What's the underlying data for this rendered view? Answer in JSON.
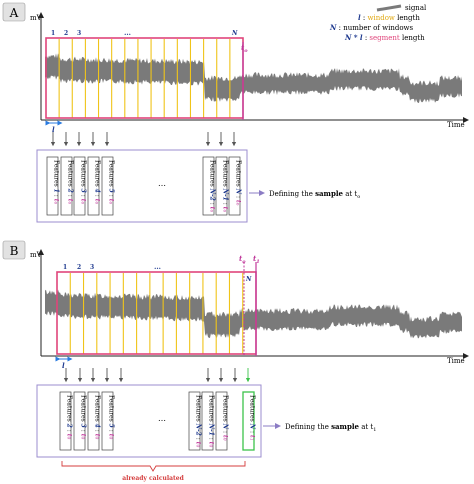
{
  "colors": {
    "signal": "#7a7a7a",
    "window_line": "#f0c419",
    "segment_rect": "#e0457b",
    "time_marker": "#c0399b",
    "index_blue": "#1f3a8f",
    "feature_box_border": "#9b8ccf",
    "green_highlight": "#3cc24a",
    "brace_red": "#d43c3c"
  },
  "legend": {
    "signal": "signal",
    "l_label": "l",
    "l_text_pre": " : ",
    "l_window": "window",
    "l_text_post": " length",
    "n_label": "N",
    "n_text": " : number of windows",
    "nl_label": "N * l",
    "nl_text_pre": " : ",
    "nl_segment": "segment",
    "nl_text_post": " length"
  },
  "panel_a": {
    "letter": "A",
    "y_axis": "mV",
    "x_axis": "Time",
    "time_marker": "t",
    "time_marker_sub": "o",
    "window_indices": [
      "1",
      "2",
      "3",
      "…",
      "N"
    ],
    "window_l": "l",
    "features": [
      {
        "label": "Features",
        "index": "1",
        "t": "t",
        "sub": "o"
      },
      {
        "label": "Features",
        "index": "2",
        "t": "t",
        "sub": "o"
      },
      {
        "label": "Features",
        "index": "3",
        "t": "t",
        "sub": "o"
      },
      {
        "label": "Features",
        "index": "4",
        "t": "t",
        "sub": "o"
      },
      {
        "label": "Features",
        "index": "5",
        "t": "t",
        "sub": "o"
      },
      {
        "label": "Features",
        "index": "N-2",
        "t": "t",
        "sub": "o"
      },
      {
        "label": "Features",
        "index": "N-1",
        "t": "t",
        "sub": "o"
      },
      {
        "label": "Features",
        "index": "N",
        "t": "t",
        "sub": "o"
      }
    ],
    "features_ellipsis": "…",
    "defining_pre": "Defining the ",
    "defining_bold": "sample",
    "defining_post": " at t",
    "defining_sub": "o"
  },
  "panel_b": {
    "letter": "B",
    "y_axis": "mV",
    "x_axis": "Time",
    "time_marker_0": "t",
    "time_marker_0_sub": "o",
    "time_marker_1": "t",
    "time_marker_1_sub": "1",
    "window_indices": [
      "1",
      "2",
      "3",
      "…",
      "N"
    ],
    "window_l": "l",
    "features": [
      {
        "label": "Features",
        "index": "2",
        "t": "t",
        "sub": "0"
      },
      {
        "label": "Features",
        "index": "3",
        "t": "t",
        "sub": "0"
      },
      {
        "label": "Features",
        "index": "4",
        "t": "t",
        "sub": "0"
      },
      {
        "label": "Features",
        "index": "5",
        "t": "t",
        "sub": "0"
      },
      {
        "label": "Features",
        "index": "N-2",
        "t": "t",
        "sub": "0"
      },
      {
        "label": "Features",
        "index": "N-1",
        "t": "t",
        "sub": "0"
      },
      {
        "label": "Features",
        "index": "N",
        "t": "t",
        "sub": "0"
      },
      {
        "label": "Features",
        "index": "N",
        "t": "t",
        "sub": "1"
      }
    ],
    "features_ellipsis": "…",
    "defining_pre": "Defining the ",
    "defining_bold": "sample",
    "defining_post": " at t",
    "defining_sub": "1",
    "already_calculated": "already calculated"
  }
}
